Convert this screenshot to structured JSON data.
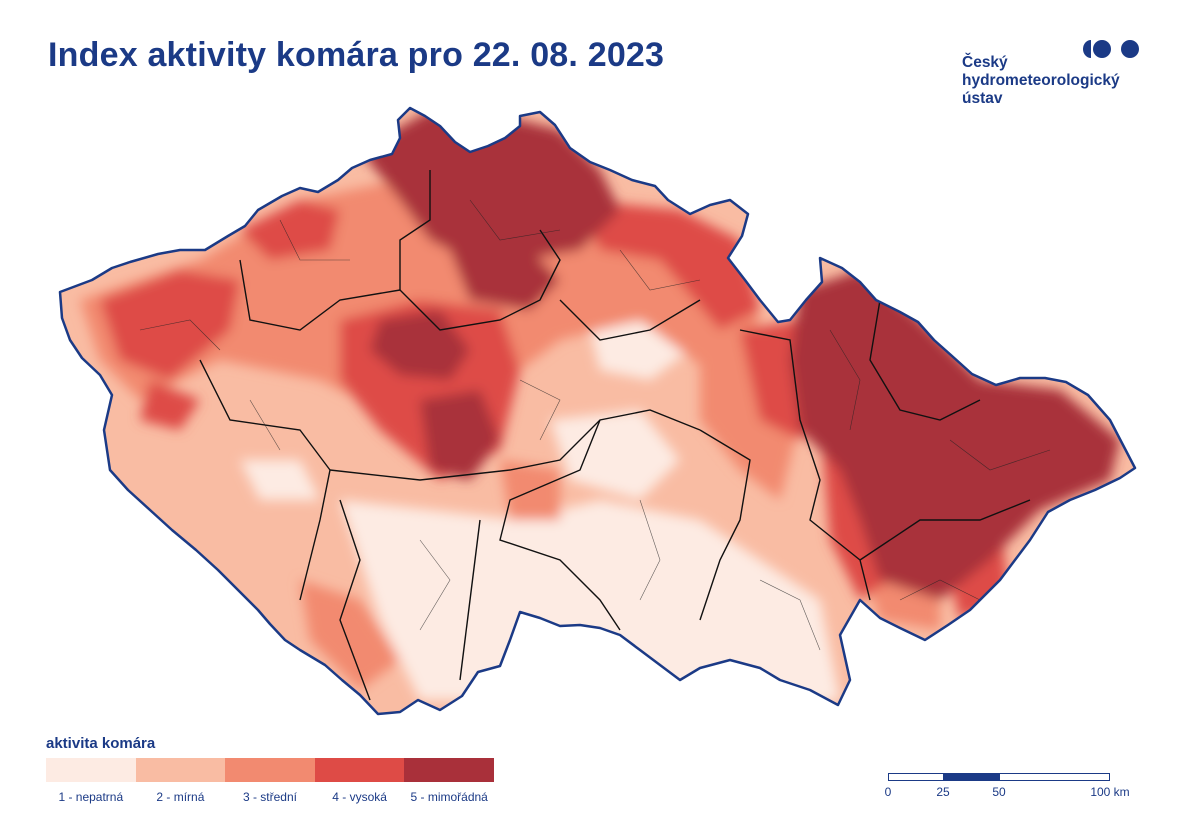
{
  "title": "Index aktivity komára pro 22. 08. 2023",
  "logo": {
    "lines": [
      "Český",
      "hydrometeorologický",
      "ústav"
    ],
    "color": "#1b3a86"
  },
  "legend": {
    "title": "aktivita komára",
    "items": [
      {
        "label": "1 - nepatrná",
        "color": "#fdebe3"
      },
      {
        "label": "2 - mírná",
        "color": "#f9bca3"
      },
      {
        "label": "3 - střední",
        "color": "#f28a70"
      },
      {
        "label": "4 - vysoká",
        "color": "#de4b46"
      },
      {
        "label": "5 - mimořádná",
        "color": "#a9303a"
      }
    ]
  },
  "scale": {
    "labels": [
      "0",
      "25",
      "50",
      "100 km"
    ]
  },
  "colors": {
    "border": "#1b3a86",
    "region_lines": "#111111"
  }
}
